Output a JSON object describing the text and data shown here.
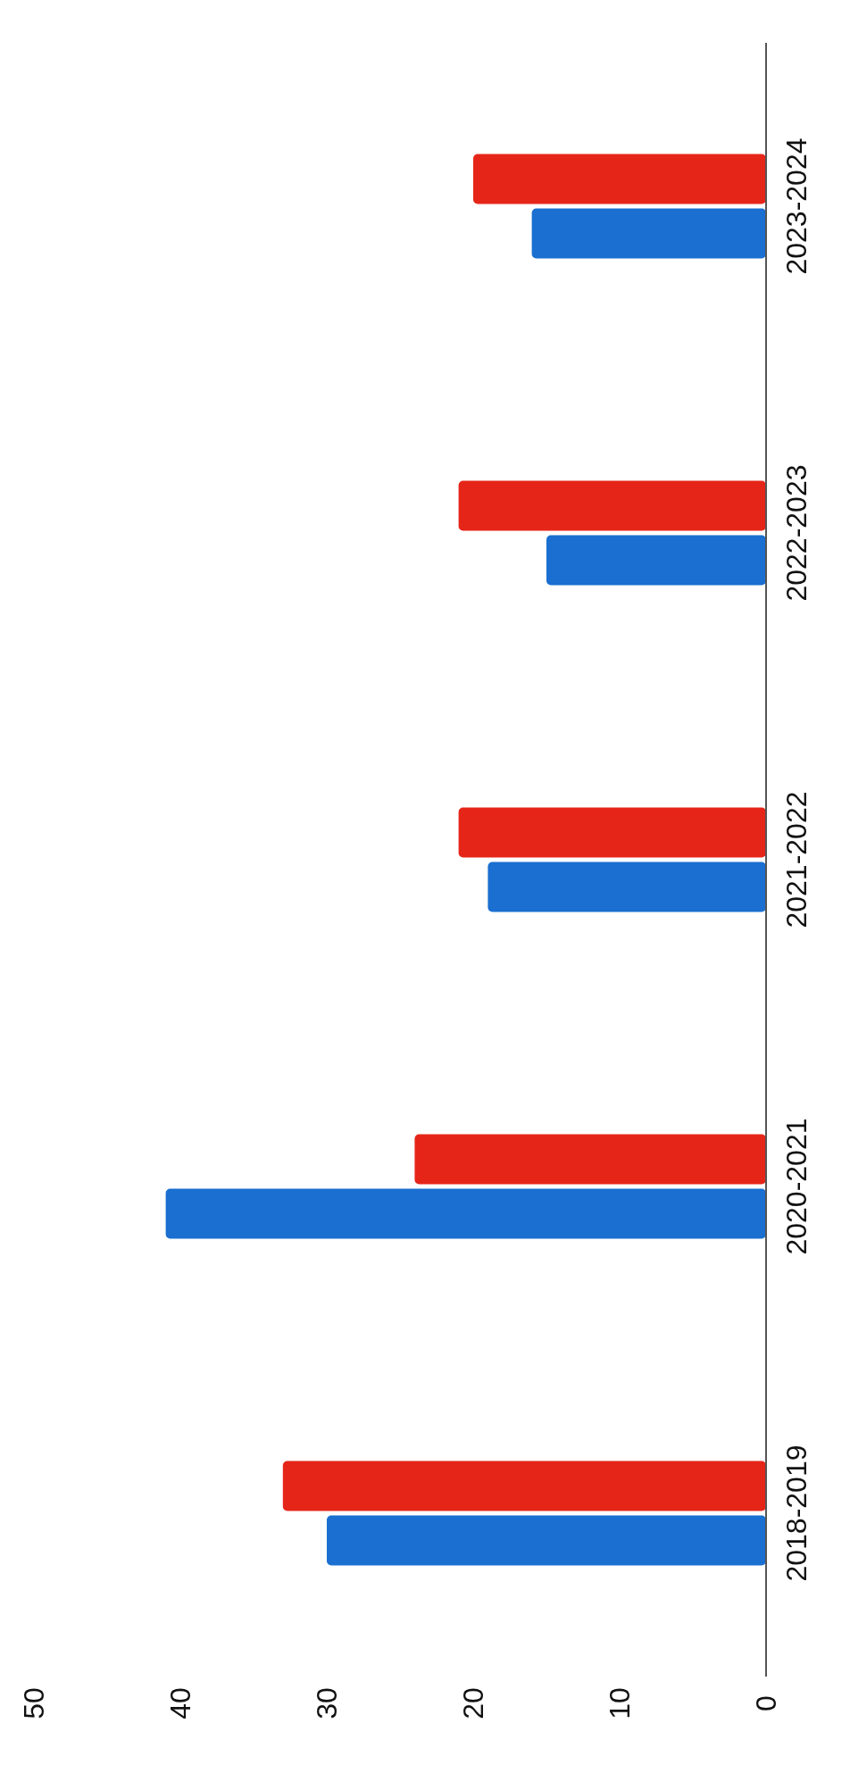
{
  "chart_data": {
    "type": "bar",
    "orientation": "horizontal",
    "categories": [
      "2023-2024",
      "2022-2023",
      "2021-2022",
      "2020-2021",
      "2018-2019"
    ],
    "series": [
      {
        "color": "#e62519",
        "values": [
          20,
          21,
          21,
          24,
          33
        ]
      },
      {
        "color": "#1a6fd0",
        "values": [
          16,
          15,
          19,
          41,
          30
        ]
      }
    ],
    "xlim": [
      50,
      0
    ],
    "xticks": [
      0,
      10,
      20,
      30,
      40,
      50
    ],
    "grid": false,
    "legend": false
  }
}
